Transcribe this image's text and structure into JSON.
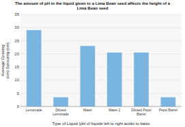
{
  "chart_data": {
    "type": "bar",
    "title": "The amount of pH in the liquid given to a Lima Bean seed affects the height of a\nLima Bean seed",
    "categories": [
      "Lemonade",
      "Diluted Lemonade",
      "Water",
      "Water 2",
      "Diluted Pepsi\nBarrel",
      "Pepsi Barrel"
    ],
    "values": [
      29,
      3.5,
      23,
      20.5,
      20.5,
      3.5
    ],
    "color": "#7ab4e0",
    "ylabel": "Average Growing\n(cm) Sprouting (cm)",
    "xlabel": "Type of Liquid (pH of liquids left to right acidic to basic",
    "ylim": [
      0,
      35
    ],
    "yticks": [
      0,
      5,
      10,
      15,
      20,
      25,
      30,
      35
    ],
    "grid": true
  }
}
